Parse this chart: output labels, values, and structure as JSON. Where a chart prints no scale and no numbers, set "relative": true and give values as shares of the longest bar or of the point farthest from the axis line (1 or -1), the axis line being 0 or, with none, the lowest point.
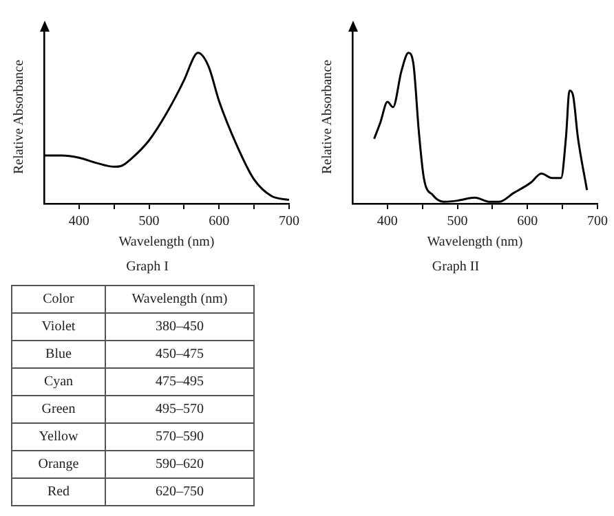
{
  "chart_data": [
    {
      "type": "line",
      "title": "Graph I",
      "xlabel": "Wavelength (nm)",
      "ylabel": "Relative Absorbance",
      "relative": true,
      "color": "#000000",
      "xlim": [
        350,
        700
      ],
      "xticks": [
        {
          "value": 400,
          "label": "400"
        },
        {
          "value": 450,
          "label": null
        },
        {
          "value": 500,
          "label": "500"
        },
        {
          "value": 550,
          "label": null
        },
        {
          "value": 600,
          "label": "600"
        },
        {
          "value": 650,
          "label": null
        },
        {
          "value": 700,
          "label": "700"
        }
      ],
      "x": [
        350,
        375,
        400,
        425,
        450,
        460,
        475,
        500,
        525,
        550,
        565,
        570,
        585,
        600,
        625,
        650,
        675,
        700
      ],
      "values": [
        0.32,
        0.32,
        0.305,
        0.27,
        0.245,
        0.25,
        0.3,
        0.42,
        0.6,
        0.82,
        0.98,
        1,
        0.91,
        0.68,
        0.39,
        0.16,
        0.05,
        0.025
      ],
      "grid": false,
      "legend": false,
      "marker": "none"
    },
    {
      "type": "line",
      "title": "Graph II",
      "xlabel": "Wavelength (nm)",
      "ylabel": "Relative Absorbance",
      "relative": true,
      "color": "#000000",
      "xlim": [
        350,
        700
      ],
      "xticks": [
        {
          "value": 400,
          "label": "400"
        },
        {
          "value": 450,
          "label": null
        },
        {
          "value": 500,
          "label": "500"
        },
        {
          "value": 550,
          "label": null
        },
        {
          "value": 600,
          "label": "600"
        },
        {
          "value": 650,
          "label": null
        },
        {
          "value": 700,
          "label": "700"
        }
      ],
      "x": [
        381,
        390,
        400,
        408,
        420,
        430,
        437,
        445,
        452,
        465,
        480,
        500,
        525,
        545,
        560,
        580,
        595,
        605,
        620,
        635,
        648,
        655,
        660,
        665,
        672,
        685
      ],
      "values": [
        0.43,
        0.54,
        0.675,
        0.64,
        0.88,
        1,
        0.93,
        0.47,
        0.17,
        0.056,
        0.013,
        0.02,
        0.04,
        0.013,
        0.013,
        0.07,
        0.11,
        0.14,
        0.2,
        0.17,
        0.17,
        0.44,
        0.75,
        0.72,
        0.44,
        0.09
      ],
      "grid": false,
      "legend": false,
      "marker": "none"
    },
    {
      "type": "other",
      "annotations": [
        "Color",
        "Wavelength (nm)",
        "Violet",
        "380–450",
        "Blue",
        "450–475",
        "Cyan",
        "475–495",
        "Green",
        "495–570",
        "Yellow",
        "570–590",
        "Orange",
        "590–620",
        "Red",
        "620–750"
      ]
    }
  ]
}
